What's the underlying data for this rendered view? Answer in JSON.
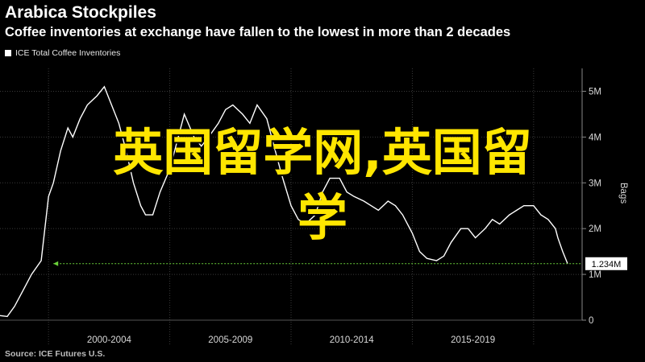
{
  "header": {
    "title": "Arabica Stockpiles",
    "subtitle": "Coffee inventories at exchange have fallen to the lowest in more than 2 decades"
  },
  "legend": {
    "label": "ICE Total Coffee Inventories"
  },
  "source": "Source: ICE Futures U.S.",
  "watermark": {
    "line1": "英国留学网,英国留",
    "line2": "学"
  },
  "colors": {
    "background": "#000000",
    "line": "#ffffff",
    "grid": "#3a3a3a",
    "reference": "#6ad13a",
    "watermark": "#ffe600"
  },
  "chart_data": {
    "type": "line",
    "title": "Arabica Stockpiles",
    "subtitle": "Coffee inventories at exchange have fallen to the lowest in more than 2 decades",
    "ylabel": "Bags",
    "y_axis_position": "right",
    "ylim": [
      0,
      5500000
    ],
    "y_ticks": [
      0,
      1000000,
      2000000,
      3000000,
      4000000,
      5000000
    ],
    "y_tick_labels": [
      "0",
      "1M",
      "2M",
      "3M",
      "4M",
      "5M"
    ],
    "xlim": [
      1998.0,
      2022.0
    ],
    "x_periods": [
      "2000-2004",
      "2005-2009",
      "2010-2014",
      "2015-2019"
    ],
    "x_boundaries": [
      2000,
      2005,
      2010,
      2015,
      2020
    ],
    "grid": true,
    "legend_position": "top-left",
    "last_value_label": "1.234M",
    "series": [
      {
        "name": "ICE Total Coffee Inventories",
        "x": [
          1998.0,
          1998.3,
          1998.6,
          1999.0,
          1999.3,
          1999.7,
          2000.0,
          2000.2,
          2000.5,
          2000.8,
          2001.0,
          2001.3,
          2001.6,
          2002.0,
          2002.3,
          2002.6,
          2002.9,
          2003.2,
          2003.5,
          2003.8,
          2004.0,
          2004.3,
          2004.6,
          2005.0,
          2005.3,
          2005.6,
          2006.0,
          2006.3,
          2006.6,
          2007.0,
          2007.3,
          2007.6,
          2008.0,
          2008.3,
          2008.6,
          2009.0,
          2009.3,
          2009.6,
          2010.0,
          2010.3,
          2010.6,
          2011.0,
          2011.3,
          2011.6,
          2012.0,
          2012.3,
          2012.6,
          2013.0,
          2013.3,
          2013.6,
          2014.0,
          2014.3,
          2014.6,
          2015.0,
          2015.3,
          2015.6,
          2016.0,
          2016.3,
          2016.6,
          2017.0,
          2017.3,
          2017.6,
          2018.0,
          2018.3,
          2018.6,
          2019.0,
          2019.3,
          2019.6,
          2020.0,
          2020.3,
          2020.6,
          2020.9,
          2021.0,
          2021.2,
          2021.4
        ],
        "y": [
          100000,
          80000,
          300000,
          700000,
          1000000,
          1300000,
          2700000,
          3000000,
          3700000,
          4200000,
          4000000,
          4400000,
          4700000,
          4900000,
          5100000,
          4700000,
          4300000,
          3700000,
          3000000,
          2500000,
          2300000,
          2300000,
          2800000,
          3300000,
          3900000,
          4500000,
          4000000,
          3800000,
          4000000,
          4300000,
          4600000,
          4700000,
          4500000,
          4300000,
          4700000,
          4400000,
          3800000,
          3200000,
          2500000,
          2200000,
          2100000,
          2300000,
          2800000,
          3100000,
          3100000,
          2800000,
          2700000,
          2600000,
          2500000,
          2400000,
          2600000,
          2500000,
          2300000,
          1900000,
          1500000,
          1350000,
          1300000,
          1400000,
          1700000,
          2000000,
          2000000,
          1800000,
          2000000,
          2200000,
          2100000,
          2300000,
          2400000,
          2500000,
          2500000,
          2300000,
          2200000,
          2000000,
          1800000,
          1500000,
          1234000
        ]
      }
    ]
  }
}
